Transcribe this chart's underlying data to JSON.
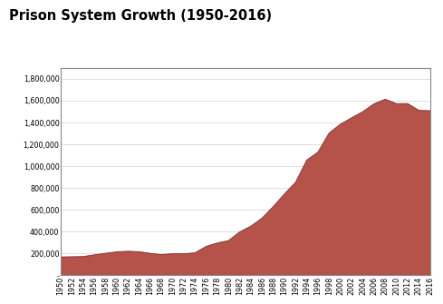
{
  "title": "Prison System Growth (1950-2016)",
  "fill_color": "#b5524a",
  "line_color": "#8b3a3a",
  "background_color": "#ffffff",
  "plot_bg_color": "#ffffff",
  "years": [
    1950,
    1952,
    1954,
    1956,
    1958,
    1960,
    1962,
    1964,
    1966,
    1968,
    1970,
    1972,
    1974,
    1976,
    1978,
    1980,
    1982,
    1984,
    1986,
    1988,
    1990,
    1992,
    1994,
    1996,
    1998,
    2000,
    2002,
    2004,
    2006,
    2008,
    2010,
    2012,
    2014,
    2016
  ],
  "values": [
    166165,
    168233,
    170000,
    185780,
    200000,
    212953,
    218830,
    214336,
    199654,
    187914,
    196429,
    196092,
    204349,
    262833,
    294396,
    315974,
    395982,
    448264,
    522084,
    627402,
    743382,
    850566,
    1053738,
    1127132,
    1302019,
    1381892,
    1440655,
    1496629,
    1568674,
    1610446,
    1570397,
    1571013,
    1508636,
    1505400
  ],
  "ylim": [
    0,
    1900000
  ],
  "yticks": [
    0,
    200000,
    400000,
    600000,
    800000,
    1000000,
    1200000,
    1400000,
    1600000,
    1800000
  ],
  "ytick_labels": [
    "-",
    "200,000",
    "400,000",
    "600,000",
    "800,000",
    "1,000,000",
    "1,200,000",
    "1,400,000",
    "1,600,000",
    "1,800,000"
  ],
  "title_fontsize": 10.5,
  "tick_fontsize": 5.8,
  "grid_color": "#d0d0d0",
  "border_color": "#888888"
}
